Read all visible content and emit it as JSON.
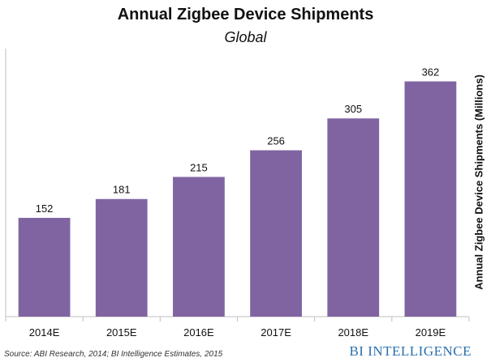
{
  "chart_data": {
    "type": "bar",
    "title": "Annual Zigbee Device Shipments",
    "subtitle": "Global",
    "xlabel": "",
    "ylabel": "Annual Zigbee Device Shipments (Millions)",
    "categories": [
      "2014E",
      "2015E",
      "2016E",
      "2017E",
      "2018E",
      "2019E"
    ],
    "values": [
      152,
      181,
      215,
      256,
      305,
      362
    ],
    "data_labels": [
      "152",
      "181",
      "215",
      "256",
      "305",
      "362"
    ],
    "ylim": [
      0,
      400
    ],
    "grid": false,
    "legend": "none",
    "bar_color": "#8064a2",
    "axis_color": "#bfbfbf"
  },
  "footer": {
    "source": "Source: ABI Research, 2014; BI Intelligence Estimates, 2015",
    "brand_prefix": "BI",
    "brand_name": "INTELLIGENCE",
    "brand_color": "#2a6fb0"
  }
}
